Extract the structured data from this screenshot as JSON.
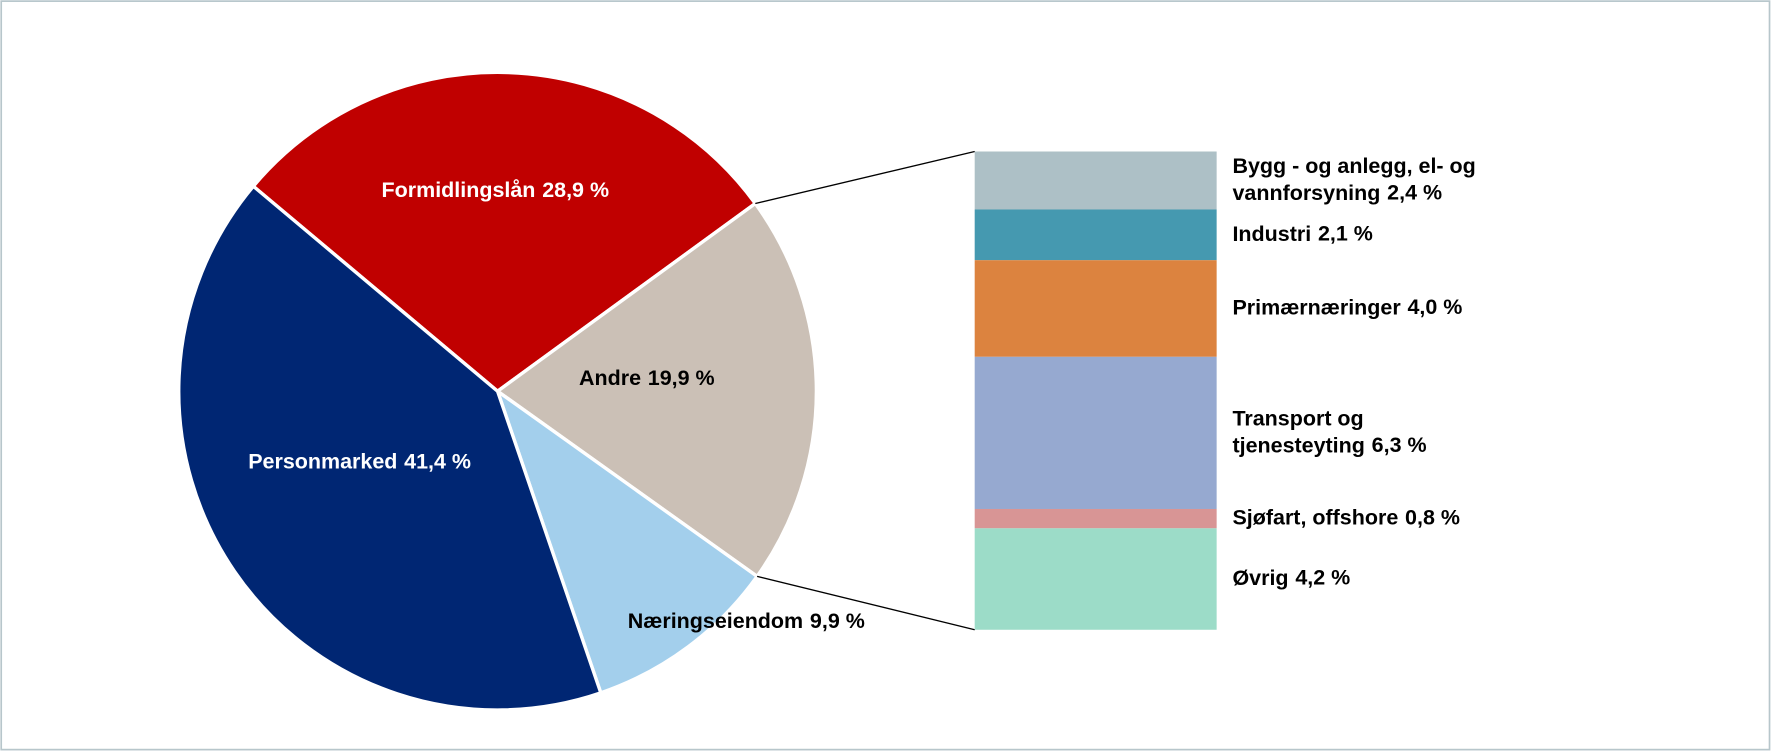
{
  "chart_data": {
    "type": "pie-of-bar",
    "pie": {
      "categories": [
        "Formidlingslån",
        "Andre",
        "Næringseiendom",
        "Personmarked"
      ],
      "values": [
        28.9,
        19.9,
        9.9,
        41.4
      ],
      "value_labels": [
        "28,9 %",
        "19,9 %",
        "9,9 %",
        "41,4 %"
      ],
      "colors": [
        "#c00000",
        "#cbc0b6",
        "#a3cfec",
        "#002673"
      ]
    },
    "bar": {
      "categories": [
        "Bygg - og anlegg, el- og\nvannforsyning",
        "Industri",
        "Primærnæringer ",
        "Transport og\ntjenesteyting",
        "Sjøfart, offshore",
        "Øvrig"
      ],
      "values": [
        2.4,
        2.1,
        4.0,
        6.3,
        0.8,
        4.2
      ],
      "value_labels": [
        "2,4 %",
        "2,1 %",
        "4,0 %",
        "6,3 %",
        "0,8 %",
        "4,2 %"
      ],
      "colors": [
        "#adc0c6",
        "#4599b0",
        "#dc833f",
        "#96a9d0",
        "#d89595",
        "#9cdcc8"
      ]
    }
  }
}
